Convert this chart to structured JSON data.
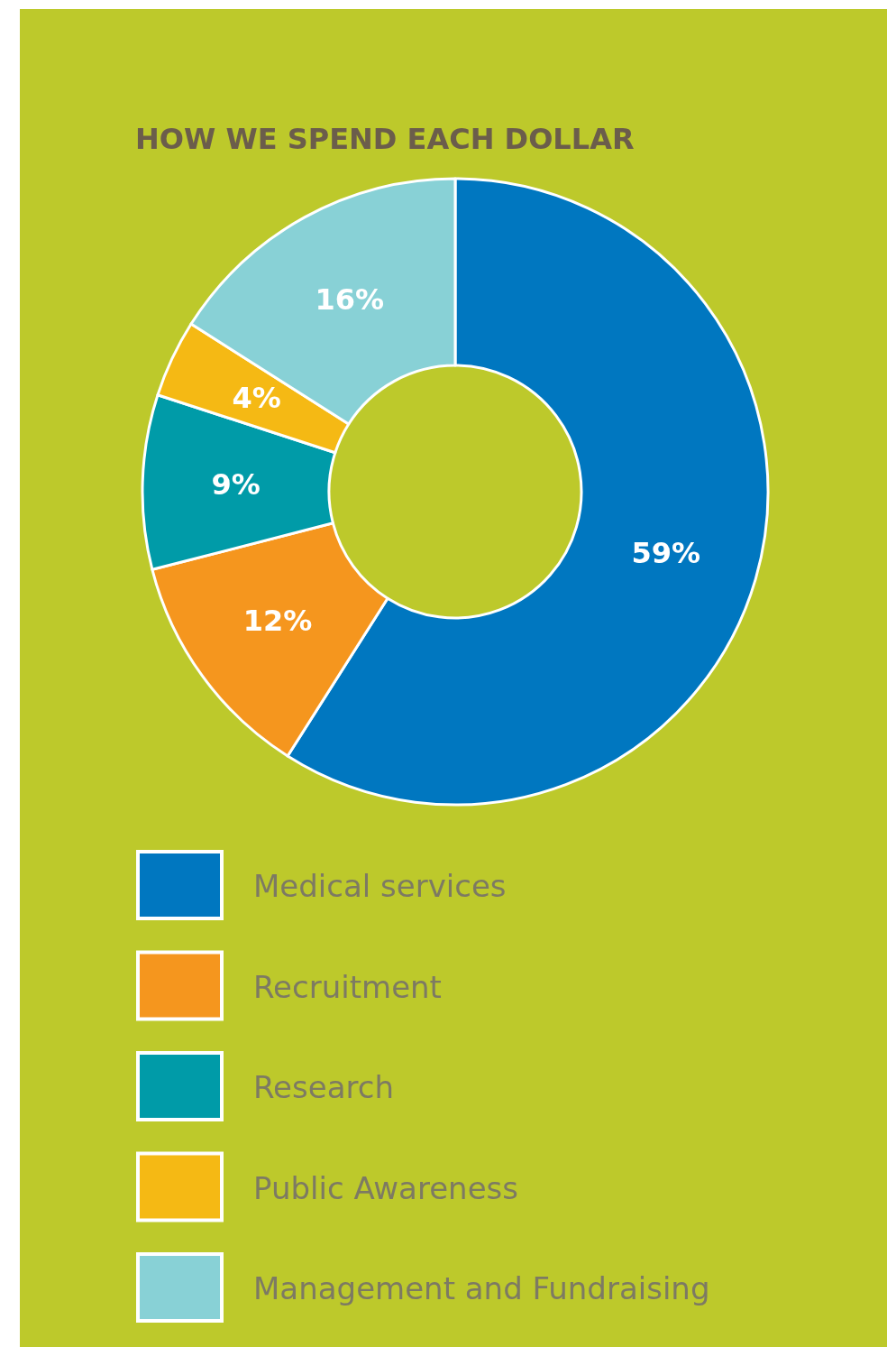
{
  "chart_data": {
    "type": "donut",
    "title": "HOW WE SPEND EACH DOLLAR",
    "categories": [
      "Medical services",
      "Recruitment",
      "Research",
      "Public Awareness",
      "Management and Fundraising"
    ],
    "values": [
      59,
      12,
      9,
      4,
      16
    ],
    "value_labels": [
      "59%",
      "12%",
      "9%",
      "4%",
      "16%"
    ],
    "colors": [
      "#0077c0",
      "#f5961e",
      "#009ba8",
      "#f5b914",
      "#88d1d6"
    ],
    "legend": "bottom"
  }
}
